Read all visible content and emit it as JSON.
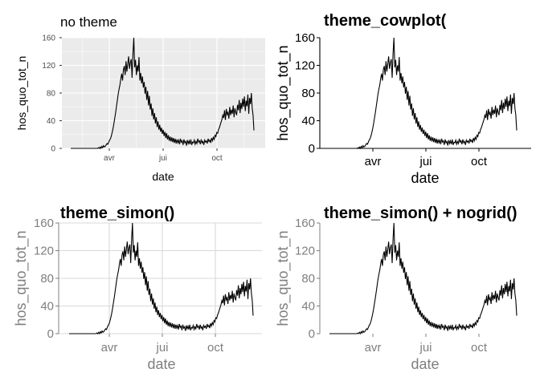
{
  "colors": {
    "line": "#000000",
    "ggplot_panel": "#ebebeb",
    "ggplot_grid": "#ffffff",
    "ggplot_text": "#4d4d4d",
    "simon_text": "#7f7f7f",
    "simon_grid": "#d9d9d9"
  },
  "chart_data": [
    {
      "type": "line",
      "style": "ggplot-default",
      "title": "no theme",
      "xlabel": "date",
      "ylabel": "hos_quo_tot_n",
      "x_tick_labels": [
        "avr",
        "jui",
        "oct"
      ],
      "y_tick_labels": [
        "0",
        "40",
        "80",
        "120",
        "160"
      ],
      "ylim": [
        0,
        160
      ],
      "grid": true
    },
    {
      "type": "line",
      "style": "cowplot",
      "title": "theme_cowplot(",
      "xlabel": "date",
      "ylabel": "hos_quo_tot_n",
      "x_tick_labels": [
        "avr",
        "jui",
        "oct"
      ],
      "y_tick_labels": [
        "0",
        "40",
        "80",
        "120",
        "160"
      ],
      "ylim": [
        0,
        160
      ],
      "grid": false
    },
    {
      "type": "line",
      "style": "simon",
      "title": "theme_simon()",
      "xlabel": "date",
      "ylabel": "hos_quo_tot_n",
      "x_tick_labels": [
        "avr",
        "jui",
        "oct"
      ],
      "y_tick_labels": [
        "0",
        "40",
        "80",
        "120",
        "160"
      ],
      "ylim": [
        0,
        160
      ],
      "grid": true
    },
    {
      "type": "line",
      "style": "simon-nogrid",
      "title": "theme_simon() + nogrid()",
      "xlabel": "date",
      "ylabel": "hos_quo_tot_n",
      "x_tick_labels": [
        "avr",
        "jui",
        "oct"
      ],
      "y_tick_labels": [
        "0",
        "40",
        "80",
        "120",
        "160"
      ],
      "ylim": [
        0,
        160
      ],
      "grid": false
    }
  ],
  "series": {
    "name": "",
    "x_start": "2020-02-15",
    "x_step_days": 1,
    "values": [
      0,
      0,
      0,
      0,
      0,
      0,
      0,
      0,
      0,
      0,
      0,
      0,
      0,
      0,
      0,
      0,
      0,
      0,
      0,
      0,
      0,
      0,
      0,
      0,
      0,
      0,
      0,
      0,
      0,
      0,
      0,
      0,
      1,
      0,
      2,
      0,
      3,
      1,
      4,
      2,
      3,
      5,
      7,
      6,
      9,
      12,
      14,
      18,
      23,
      29,
      36,
      44,
      52,
      61,
      70,
      79,
      86,
      92,
      101,
      108,
      98,
      114,
      119,
      106,
      126,
      111,
      122,
      133,
      115,
      124,
      129,
      102,
      137,
      160,
      117,
      128,
      106,
      120,
      111,
      132,
      98,
      109,
      94,
      104,
      88,
      96,
      79,
      89,
      70,
      83,
      62,
      76,
      56,
      65,
      47,
      58,
      42,
      51,
      36,
      45,
      31,
      39,
      27,
      34,
      24,
      30,
      21,
      27,
      18,
      24,
      15,
      22,
      13,
      19,
      11,
      17,
      10,
      16,
      9,
      15,
      8,
      14,
      7,
      13,
      8,
      12,
      6,
      14,
      9,
      11,
      5,
      13,
      8,
      10,
      4,
      12,
      7,
      11,
      6,
      13,
      5,
      9,
      8,
      12,
      6,
      10,
      7,
      14,
      9,
      11,
      6,
      13,
      8,
      10,
      5,
      12,
      9,
      11,
      7,
      14,
      10,
      12,
      8,
      15,
      11,
      16,
      13,
      19,
      17,
      23,
      22,
      27,
      30,
      34,
      38,
      42,
      48,
      44,
      55,
      41,
      57,
      49,
      52,
      43,
      60,
      48,
      56,
      50,
      62,
      45,
      58,
      52,
      48,
      63,
      55,
      70,
      51,
      66,
      57,
      72,
      60,
      75,
      54,
      69,
      61,
      78,
      50,
      73,
      64,
      80,
      58,
      48,
      26
    ]
  }
}
